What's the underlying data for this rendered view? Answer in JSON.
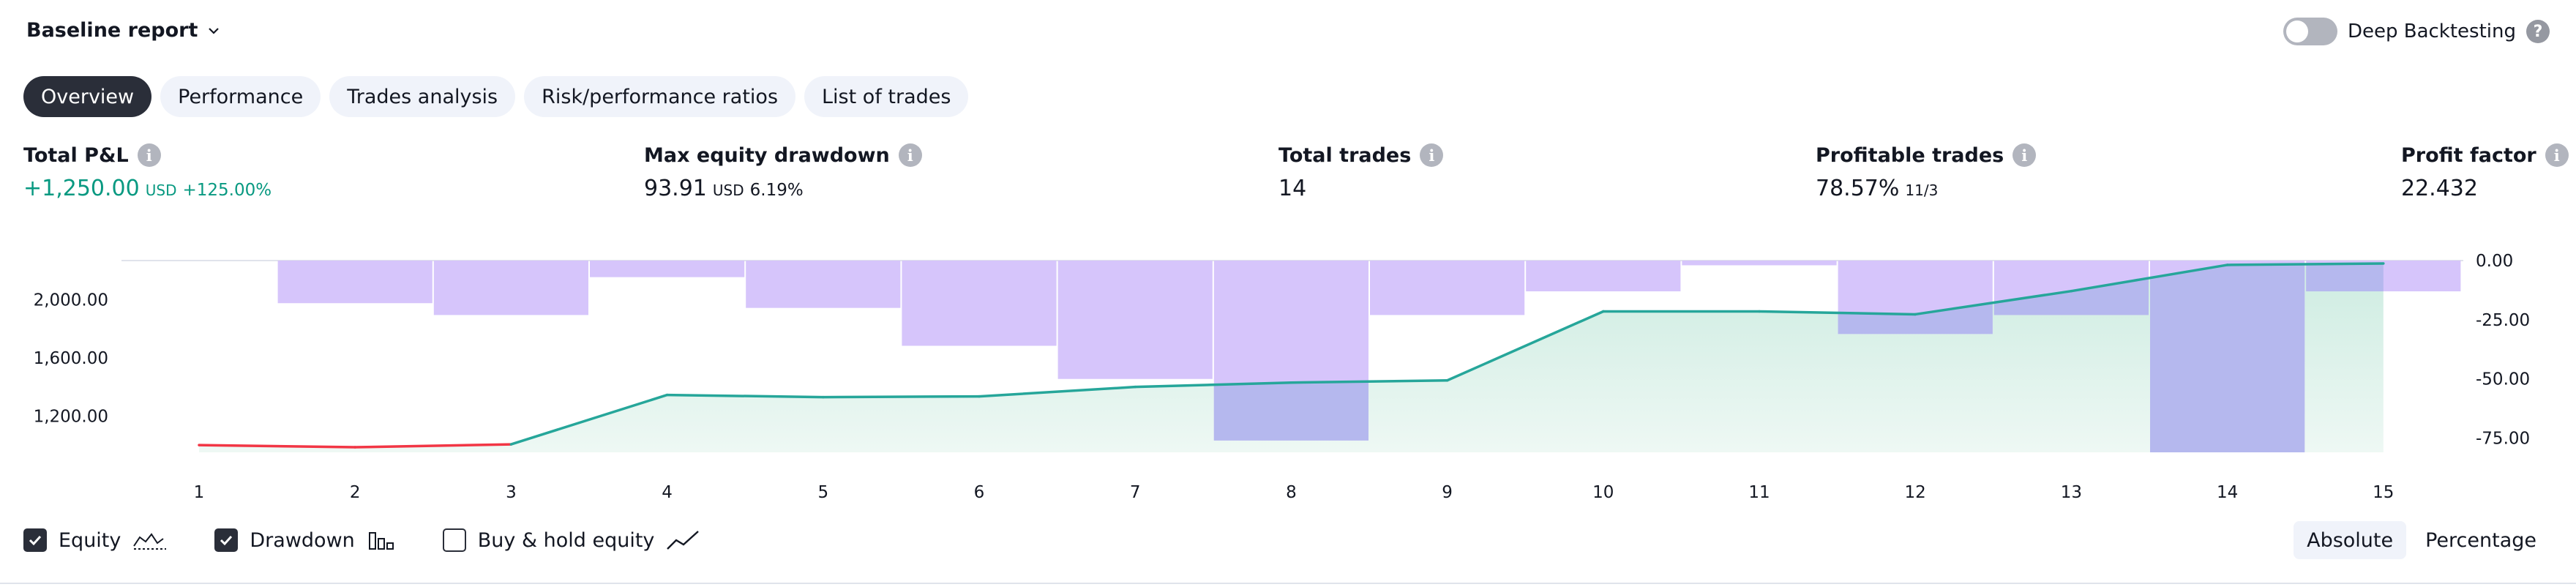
{
  "header": {
    "report_title": "Baseline report",
    "deep_backtesting_label": "Deep Backtesting"
  },
  "tabs": [
    {
      "label": "Overview",
      "active": true
    },
    {
      "label": "Performance"
    },
    {
      "label": "Trades analysis"
    },
    {
      "label": "Risk/performance ratios"
    },
    {
      "label": "List of trades"
    }
  ],
  "stats": {
    "total_pnl": {
      "label": "Total P&L",
      "value": "+1,250.00",
      "unit": "USD",
      "percent": "+125.00%"
    },
    "max_drawdown": {
      "label": "Max equity drawdown",
      "value": "93.91",
      "unit": "USD",
      "percent": "6.19%"
    },
    "total_trades": {
      "label": "Total trades",
      "value": "14"
    },
    "profitable_trades": {
      "label": "Profitable trades",
      "value": "78.57%",
      "ratio": "11/3"
    },
    "profit_factor": {
      "label": "Profit factor",
      "value": "22.432"
    }
  },
  "chart_data": {
    "type": "line",
    "x": [
      1,
      2,
      3,
      4,
      5,
      6,
      7,
      8,
      9,
      10,
      11,
      12,
      13,
      14,
      15
    ],
    "series": [
      {
        "name": "Equity",
        "axis": "left",
        "values": [
          1000,
          985,
          1005,
          1345,
          1330,
          1335,
          1400,
          1430,
          1445,
          1920,
          1920,
          1900,
          2060,
          2240,
          2250
        ]
      },
      {
        "name": "Drawdown",
        "axis": "right",
        "kind": "bar",
        "values": [
          0,
          -18,
          -23,
          -7,
          -20,
          -36,
          -50,
          -76,
          -23,
          -13,
          -2,
          -31,
          -23,
          -81,
          -13
        ]
      }
    ],
    "left_axis": {
      "ticks": [
        "1,200.00",
        "1,600.00",
        "2,000.00"
      ],
      "range": [
        950,
        2270
      ]
    },
    "right_axis": {
      "ticks": [
        "0.00",
        "-25.00",
        "-50.00",
        "-75.00"
      ],
      "range": [
        -81,
        0
      ]
    },
    "colors": {
      "equity_up": "#26a69a",
      "equity_down": "#f23645",
      "drawdown_fill": "#d6c5fb",
      "overlap_fill": "#b5b8ee",
      "area_fill": "#e3f4ee"
    }
  },
  "legend": {
    "equity": {
      "label": "Equity",
      "checked": true
    },
    "drawdown": {
      "label": "Drawdown",
      "checked": true
    },
    "buy_hold": {
      "label": "Buy & hold equity",
      "checked": false
    }
  },
  "mode": {
    "absolute_label": "Absolute",
    "percentage_label": "Percentage"
  }
}
